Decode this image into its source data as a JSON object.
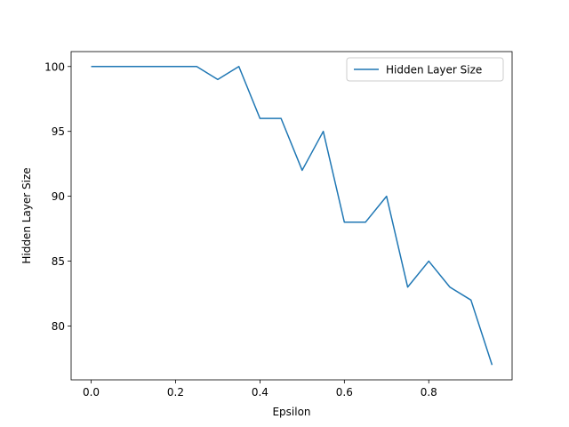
{
  "chart_data": {
    "type": "line",
    "xlabel": "Epsilon",
    "ylabel": "Hidden Layer Size",
    "x": [
      0,
      0.05,
      0.1,
      0.15,
      0.2,
      0.25,
      0.3,
      0.35,
      0.4,
      0.45,
      0.5,
      0.55,
      0.6,
      0.65,
      0.7,
      0.75,
      0.8,
      0.85,
      0.9,
      0.95
    ],
    "series": [
      {
        "name": "Hidden Layer Size",
        "color": "#1f77b4",
        "values": [
          100,
          100,
          100,
          100,
          100,
          100,
          99,
          100,
          96,
          96,
          92,
          95,
          88,
          88,
          90,
          83,
          85,
          83,
          82,
          77
        ]
      }
    ],
    "xlim": [
      -0.0475,
      0.9975
    ],
    "xticks": [
      {
        "value": 0,
        "label": "0.0"
      },
      0.2,
      0.4,
      0.6,
      0.8
    ],
    "ylim": [
      75.85,
      101.15
    ],
    "yticks": [
      80,
      85,
      90,
      95,
      100
    ],
    "legend": "upper right"
  }
}
